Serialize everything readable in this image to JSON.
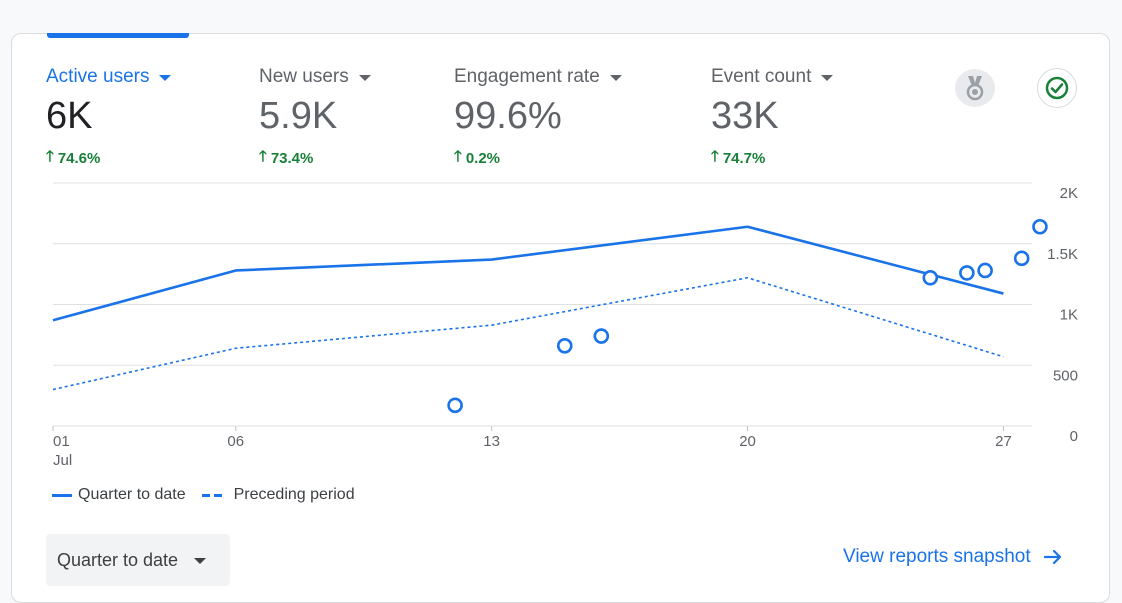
{
  "metrics": [
    {
      "label": "Active users",
      "value": "6K",
      "change": "74.6%"
    },
    {
      "label": "New users",
      "value": "5.9K",
      "change": "73.4%"
    },
    {
      "label": "Engagement rate",
      "value": "99.6%",
      "change": "0.2%"
    },
    {
      "label": "Event count",
      "value": "33K",
      "change": "74.7%"
    }
  ],
  "icons": {
    "insights": "insights-badge-icon",
    "status": "check-circle-icon",
    "arrow": "arrow-right-icon",
    "change": "arrow-up-icon"
  },
  "colors": {
    "accent": "#1a73e8",
    "positive": "#188038",
    "status_check": "#188038"
  },
  "chart_data": {
    "type": "line",
    "x_labels": [
      "01",
      "06",
      "13",
      "20",
      "27"
    ],
    "x_sublabel": "Jul",
    "y_ticks": [
      "2K",
      "1.5K",
      "1K",
      "500",
      "0"
    ],
    "ylim": [
      0,
      2000
    ],
    "grid": true,
    "series": [
      {
        "name": "Quarter to date",
        "style": "solid",
        "points": [
          [
            1,
            870
          ],
          [
            6,
            1280
          ],
          [
            13,
            1370
          ],
          [
            20,
            1640
          ],
          [
            27,
            1090
          ]
        ]
      },
      {
        "name": "Preceding period",
        "style": "dashed",
        "points": [
          [
            1,
            300
          ],
          [
            6,
            640
          ],
          [
            13,
            830
          ],
          [
            20,
            1220
          ],
          [
            27,
            570
          ]
        ]
      }
    ],
    "anomalies": [
      [
        12,
        170
      ],
      [
        15,
        660
      ],
      [
        16,
        740
      ],
      [
        25,
        1220
      ],
      [
        26,
        1260
      ],
      [
        26.5,
        1280
      ],
      [
        27.5,
        1380
      ],
      [
        28,
        1640
      ]
    ]
  },
  "legend": {
    "current": "Quarter to date",
    "previous": "Preceding period"
  },
  "range_selector": {
    "label": "Quarter to date"
  },
  "link": {
    "label": "View reports snapshot"
  }
}
